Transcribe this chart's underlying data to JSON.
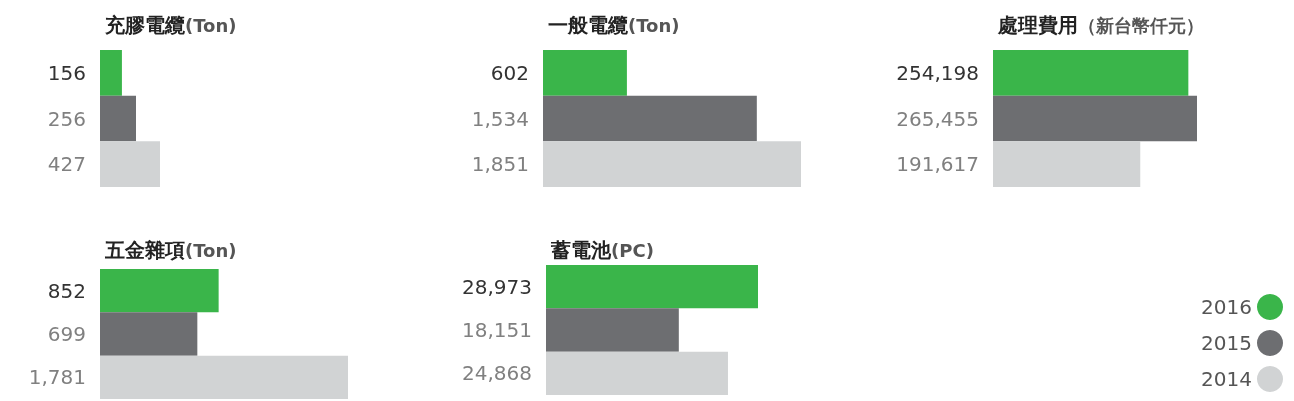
{
  "chart_data": [
    {
      "type": "bar",
      "orientation": "horizontal",
      "title": "充膠電纜(Ton)",
      "categories": [
        null
      ],
      "series": [
        {
          "color": "#3ab54a",
          "values": [
            156
          ],
          "value_labels": [
            "156"
          ]
        },
        {
          "color": "#6d6e71",
          "values": [
            256
          ],
          "value_labels": [
            "256"
          ]
        },
        {
          "color": "#d1d3d4",
          "values": [
            427
          ],
          "value_labels": [
            "427"
          ]
        }
      ]
    },
    {
      "type": "bar",
      "orientation": "horizontal",
      "title": "一般電纜(Ton)",
      "categories": [
        null
      ],
      "series": [
        {
          "color": "#3ab54a",
          "values": [
            602
          ],
          "value_labels": [
            "602"
          ]
        },
        {
          "color": "#6d6e71",
          "values": [
            1534
          ],
          "value_labels": [
            "1,534"
          ]
        },
        {
          "color": "#d1d3d4",
          "values": [
            1851
          ],
          "value_labels": [
            "1,851"
          ]
        }
      ]
    },
    {
      "type": "bar",
      "orientation": "horizontal",
      "title": "處理費用（新台幣仟元）",
      "categories": [
        null
      ],
      "series": [
        {
          "color": "#3ab54a",
          "values": [
            254198
          ],
          "value_labels": [
            "254,198"
          ]
        },
        {
          "color": "#6d6e71",
          "values": [
            265455
          ],
          "value_labels": [
            "265,455"
          ]
        },
        {
          "color": "#d1d3d4",
          "values": [
            191617
          ],
          "value_labels": [
            "191,617"
          ]
        }
      ]
    },
    {
      "type": "bar",
      "orientation": "horizontal",
      "title": "五金雜項(Ton)",
      "categories": [
        null
      ],
      "series": [
        {
          "color": "#3ab54a",
          "values": [
            852
          ],
          "value_labels": [
            "852"
          ]
        },
        {
          "color": "#6d6e71",
          "values": [
            699
          ],
          "value_labels": [
            "699"
          ]
        },
        {
          "color": "#d1d3d4",
          "values": [
            1781
          ],
          "value_labels": [
            "1,781"
          ]
        }
      ]
    },
    {
      "type": "bar",
      "orientation": "horizontal",
      "title": "蓄電池(PC)",
      "categories": [
        null
      ],
      "legend": "bottom right",
      "series": [
        {
          "name": "2016",
          "color": "#3ab54a",
          "values": [
            28973
          ],
          "value_labels": [
            "28,973"
          ]
        },
        {
          "name": "2015",
          "color": "#6d6e71",
          "values": [
            18151
          ],
          "value_labels": [
            "18,151"
          ]
        },
        {
          "name": "2014",
          "color": "#d1d3d4",
          "values": [
            24868
          ],
          "value_labels": [
            "24,868"
          ]
        }
      ]
    }
  ]
}
